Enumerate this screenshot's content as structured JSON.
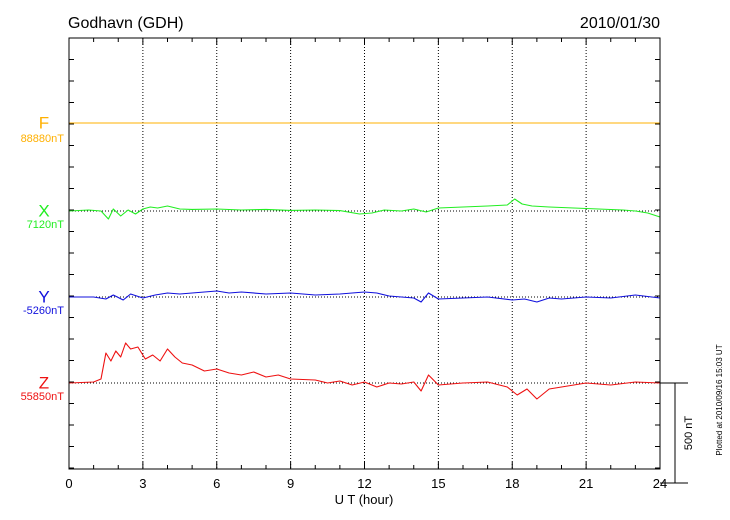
{
  "chart_data": {
    "type": "line",
    "title": "Godhavn (GDH)",
    "date": "2010/01/30",
    "xlabel": "U T (hour)",
    "xlim": [
      0,
      24
    ],
    "xticks": [
      0,
      3,
      6,
      9,
      12,
      15,
      18,
      21,
      24
    ],
    "grid": true,
    "scale_bar_label": "500 nT",
    "scale_bar_nT": 500,
    "footer": "Plotted at 2010/09/16 15:03 UT",
    "series": [
      {
        "name": "F",
        "baseline_label": "88880nT",
        "color": "#ffb000",
        "x": [
          0,
          24
        ],
        "y": [
          0,
          0
        ]
      },
      {
        "name": "X",
        "baseline_label": "7120nT",
        "color": "#22ee22",
        "x": [
          0,
          0.8,
          1.3,
          1.6,
          1.8,
          2.1,
          2.4,
          2.7,
          3.0,
          3.3,
          3.6,
          4.0,
          4.5,
          5.0,
          6.0,
          7.0,
          8.0,
          9.0,
          10.0,
          11.0,
          11.8,
          12.3,
          12.8,
          13.5,
          14.0,
          14.5,
          15.0,
          16.0,
          17.0,
          17.8,
          18.1,
          18.4,
          18.8,
          19.5,
          20.5,
          21.5,
          22.5,
          23.0,
          23.5,
          24.0
        ],
        "y": [
          0,
          5,
          0,
          -40,
          10,
          -25,
          5,
          -15,
          10,
          20,
          15,
          25,
          10,
          8,
          10,
          5,
          8,
          3,
          5,
          2,
          -15,
          -10,
          5,
          0,
          10,
          -5,
          15,
          20,
          25,
          30,
          60,
          35,
          25,
          20,
          15,
          10,
          5,
          0,
          -10,
          -30
        ]
      },
      {
        "name": "Y",
        "baseline_label": "-5260nT",
        "color": "#1010dd",
        "x": [
          0,
          1.0,
          1.5,
          1.8,
          2.2,
          2.5,
          3.0,
          3.5,
          4.0,
          4.5,
          5.0,
          5.5,
          6.0,
          6.5,
          7.0,
          8.0,
          9.0,
          10.0,
          11.0,
          11.5,
          12.0,
          12.5,
          13.0,
          13.5,
          14.0,
          14.3,
          14.6,
          15.0,
          16.0,
          17.0,
          18.0,
          18.5,
          19.0,
          19.5,
          20.0,
          21.0,
          22.0,
          23.0,
          24.0
        ],
        "y": [
          0,
          0,
          -10,
          10,
          -15,
          15,
          -5,
          10,
          20,
          15,
          20,
          25,
          30,
          20,
          25,
          15,
          20,
          10,
          15,
          20,
          25,
          20,
          5,
          0,
          -5,
          -25,
          20,
          -10,
          -5,
          0,
          -15,
          -10,
          -25,
          -5,
          -10,
          0,
          -5,
          10,
          -5
        ]
      },
      {
        "name": "Z",
        "baseline_label": "55850nT",
        "color": "#ee1111",
        "x": [
          0,
          1.0,
          1.3,
          1.5,
          1.7,
          1.9,
          2.1,
          2.3,
          2.5,
          2.8,
          3.1,
          3.4,
          3.7,
          4.0,
          4.3,
          4.6,
          5.0,
          5.5,
          6.0,
          6.5,
          7.0,
          7.5,
          8.0,
          8.5,
          9.0,
          10.0,
          10.5,
          11.0,
          11.5,
          12.0,
          12.5,
          13.0,
          13.5,
          14.0,
          14.3,
          14.6,
          15.0,
          16.0,
          17.0,
          17.8,
          18.2,
          18.6,
          19.0,
          19.5,
          20.0,
          21.0,
          22.0,
          23.0,
          24.0
        ],
        "y": [
          0,
          5,
          20,
          150,
          110,
          160,
          130,
          200,
          170,
          180,
          120,
          140,
          110,
          170,
          130,
          100,
          90,
          60,
          70,
          50,
          40,
          55,
          30,
          40,
          20,
          15,
          0,
          10,
          -10,
          5,
          -20,
          0,
          -5,
          5,
          -40,
          40,
          -10,
          0,
          5,
          -20,
          -60,
          -30,
          -80,
          -30,
          -20,
          0,
          -10,
          5,
          0
        ]
      }
    ]
  }
}
